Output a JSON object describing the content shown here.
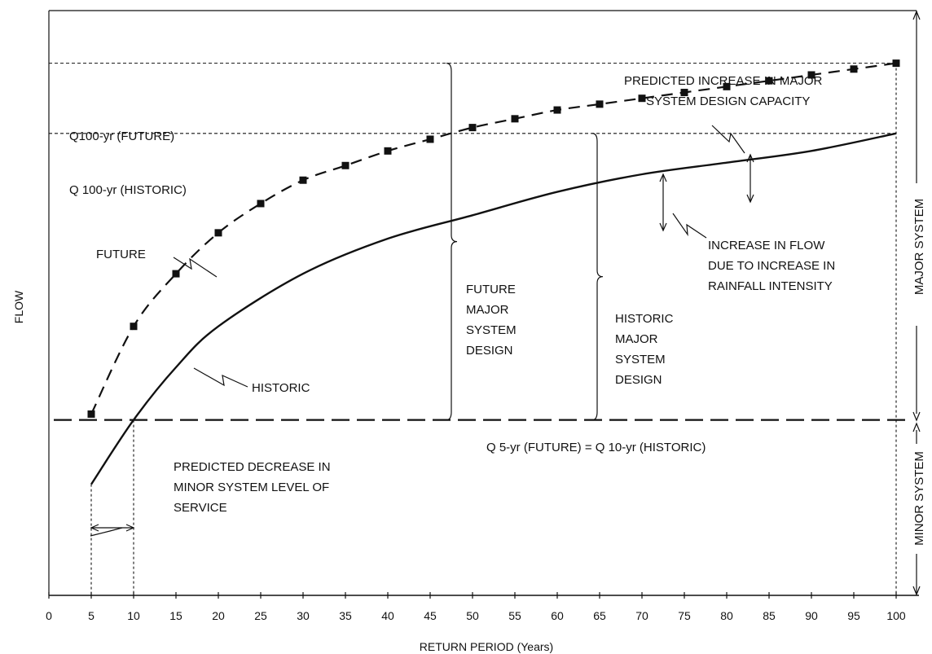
{
  "chart_data": {
    "type": "line",
    "xlabel": "RETURN PERIOD (Years)",
    "ylabel": "FLOW",
    "xlim": [
      0,
      100
    ],
    "x_ticks": [
      "0",
      "5",
      "10",
      "15",
      "20",
      "25",
      "30",
      "35",
      "40",
      "45",
      "50",
      "55",
      "60",
      "65",
      "70",
      "75",
      "80",
      "85",
      "90",
      "95",
      "100"
    ],
    "ylim": [
      0,
      1
    ],
    "grid": false,
    "legend": "none",
    "series": [
      {
        "name": "FUTURE",
        "style": "dashed with square markers",
        "x": [
          5,
          10,
          15,
          20,
          25,
          30,
          35,
          40,
          45,
          50,
          55,
          60,
          65,
          70,
          75,
          80,
          85,
          90,
          95,
          100
        ],
        "values": [
          0.31,
          0.46,
          0.55,
          0.62,
          0.67,
          0.71,
          0.735,
          0.76,
          0.78,
          0.8,
          0.815,
          0.83,
          0.84,
          0.85,
          0.86,
          0.87,
          0.88,
          0.89,
          0.9,
          0.91
        ]
      },
      {
        "name": "HISTORIC",
        "style": "solid",
        "x": [
          5,
          10,
          15,
          20,
          30,
          40,
          50,
          60,
          70,
          80,
          90,
          100
        ],
        "values": [
          0.19,
          0.3,
          0.39,
          0.46,
          0.55,
          0.61,
          0.65,
          0.69,
          0.72,
          0.74,
          0.76,
          0.79
        ]
      }
    ],
    "reference_lines": {
      "q100_future": {
        "label": "Q100-yr (FUTURE)",
        "value": 0.91
      },
      "q100_historic": {
        "label": "Q 100-yr (HISTORIC)",
        "value": 0.79
      },
      "q5_future": {
        "label": "Q 5-yr (FUTURE)  = Q 10-yr (HISTORIC)",
        "value": 0.3
      }
    },
    "annotations": {
      "future_label": "FUTURE",
      "historic_label": "HISTORIC",
      "capacity_increase": [
        "PREDICTED INCREASE IN MAJOR",
        "SYSTEM DESIGN CAPACITY"
      ],
      "flow_increase": [
        "INCREASE IN FLOW",
        "DUE TO INCREASE IN",
        "RAINFALL INTENSITY"
      ],
      "future_major": [
        "FUTURE",
        "MAJOR",
        "SYSTEM",
        "DESIGN"
      ],
      "historic_major": [
        "HISTORIC",
        "MAJOR",
        "SYSTEM",
        "DESIGN"
      ],
      "minor_decrease": [
        "PREDICTED DECREASE IN",
        "MINOR SYSTEM LEVEL OF",
        "SERVICE"
      ],
      "major_system": "MAJOR SYSTEM",
      "minor_system": "MINOR SYSTEM"
    }
  }
}
